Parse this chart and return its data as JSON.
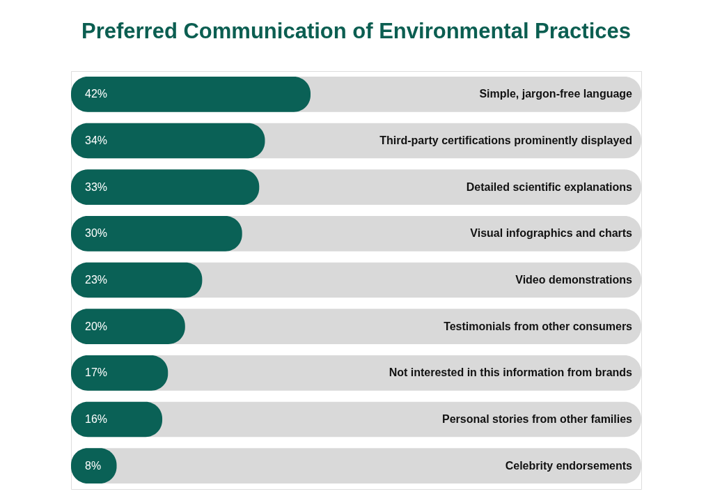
{
  "chart_data": {
    "type": "bar",
    "orientation": "horizontal",
    "title": "Preferred Communication of Environmental Practices",
    "categories": [
      "Simple, jargon-free language",
      "Third-party certifications prominently displayed",
      "Detailed scientific explanations",
      "Visual infographics and charts",
      "Video demonstrations",
      "Testimonials from other consumers",
      "Not interested in this information from brands",
      "Personal stories from other families",
      "Celebrity endorsements"
    ],
    "values": [
      42,
      34,
      33,
      30,
      23,
      20,
      17,
      16,
      8
    ],
    "value_labels": [
      "42%",
      "34%",
      "33%",
      "30%",
      "23%",
      "20%",
      "17%",
      "16%",
      "8%"
    ],
    "color": "#0a6156",
    "xlim": [
      0,
      100
    ],
    "tick_labels": false
  }
}
